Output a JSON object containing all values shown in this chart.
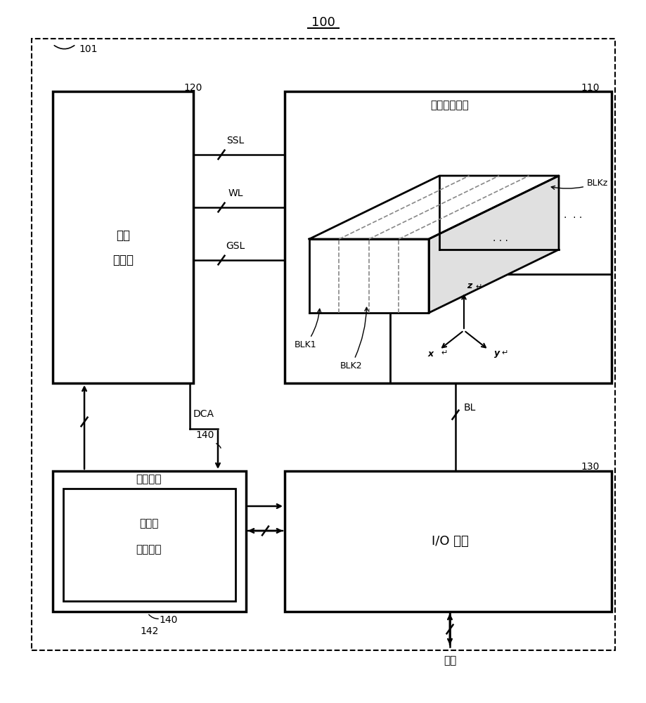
{
  "title": "100",
  "bg_color": "#ffffff",
  "label_101": "101",
  "label_110": "110",
  "label_120": "120",
  "label_130": "130",
  "label_140": "140",
  "label_142": "142",
  "text_addr_decoder": "地址\n\n解码器",
  "text_cell_array": "存储单元阵列",
  "text_ctrl_logic": "控制逻辑",
  "text_nfr_line1": "免干扰",
  "text_nfr_line2": "读取模式",
  "text_io": "I/O 电路",
  "text_ssl": "SSL",
  "text_wl": "WL",
  "text_gsl": "GSL",
  "text_dca": "DCA",
  "text_bl": "BL",
  "text_blk1": "BLK1",
  "text_blk2": "BLK2",
  "text_blkz": "BLKz",
  "text_data": "数据",
  "text_x": "x",
  "text_y": "y",
  "text_z": "z",
  "lc": "black",
  "lw_main": 2.0,
  "lw_thick": 2.5,
  "lw_thin": 1.5
}
